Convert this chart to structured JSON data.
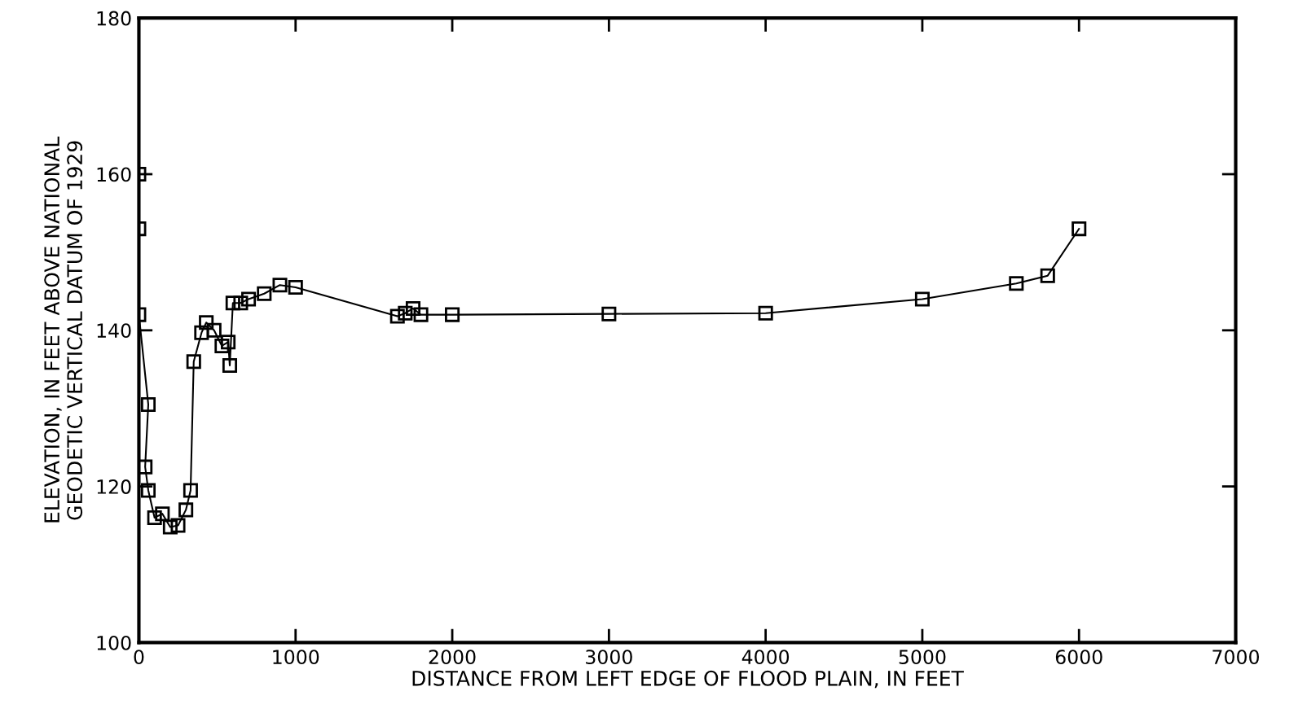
{
  "chart_data": {
    "type": "line",
    "xlabel": "DISTANCE FROM LEFT EDGE OF FLOOD PLAIN, IN FEET",
    "ylabel": "ELEVATION, IN FEET ABOVE NATIONAL\nGEODETIC VERTICAL DATUM OF 1929",
    "series": [
      {
        "color": "#000000",
        "x": [
          0,
          0,
          0,
          60,
          40,
          60,
          100,
          150,
          200,
          250,
          300,
          330,
          350,
          400,
          430,
          480,
          530,
          570,
          580,
          600,
          650,
          700,
          800,
          900,
          1000,
          1650,
          1700,
          1750,
          1800,
          2000,
          3000,
          4000,
          5000,
          5600,
          5800,
          6000
        ],
        "values": [
          160,
          153,
          142,
          130.5,
          122.5,
          119.5,
          116,
          116.5,
          114.8,
          115,
          117,
          119.5,
          136,
          139.7,
          141,
          140,
          138,
          138.5,
          135.5,
          143.5,
          143.5,
          144,
          144.7,
          145.8,
          145.5,
          141.8,
          142.2,
          142.8,
          142,
          142,
          142.1,
          142.2,
          144,
          146,
          147,
          153
        ]
      }
    ],
    "xlim": [
      0,
      7000
    ],
    "xticks": [
      0,
      1000,
      2000,
      3000,
      4000,
      5000,
      6000,
      7000
    ],
    "ylim": [
      100,
      180
    ],
    "yticks": [
      100,
      120,
      140,
      160,
      180
    ],
    "grid": false,
    "legend": false,
    "marker": "square",
    "line_style": "solid"
  }
}
